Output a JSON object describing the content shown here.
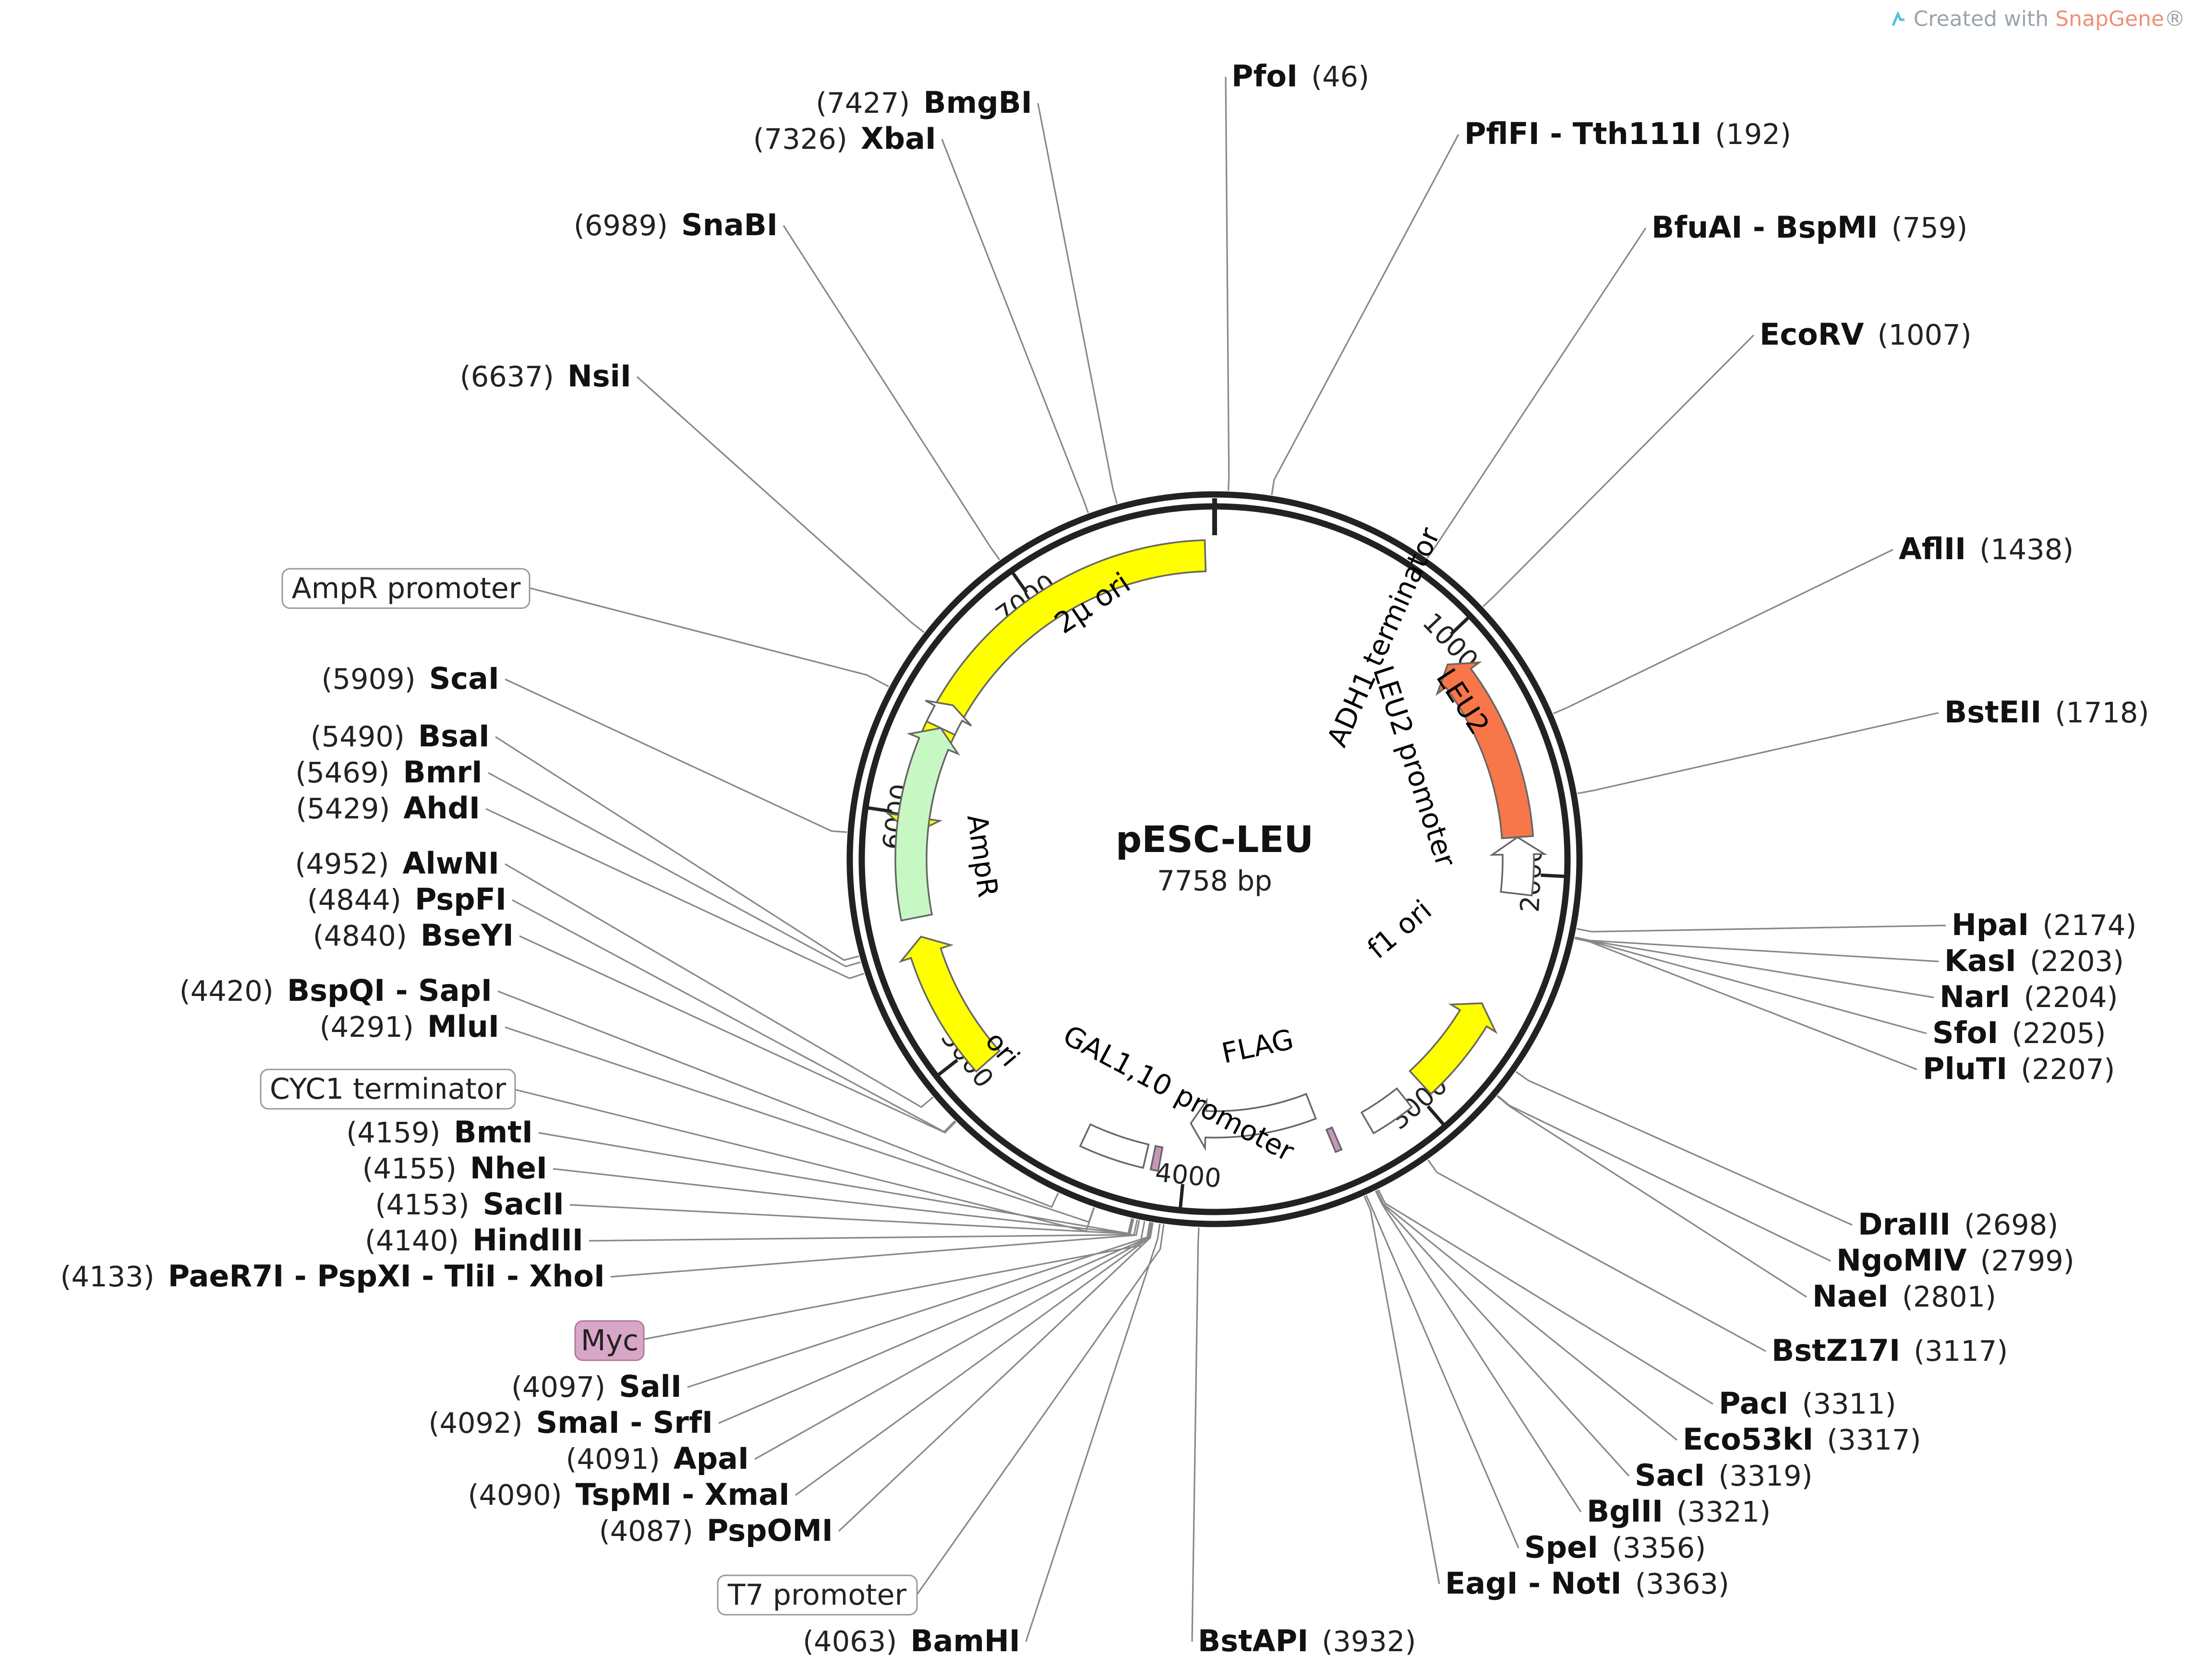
{
  "attribution": {
    "prefix": "Created with ",
    "brand": "SnapGene",
    "suffix": "®"
  },
  "plasmid": {
    "name": "pESC-LEU",
    "length_label": "7758 bp",
    "length": 7758
  },
  "ticks": [
    {
      "pos": 1000,
      "label": "1000"
    },
    {
      "pos": 2000,
      "label": "2000"
    },
    {
      "pos": 3000,
      "label": "3000"
    },
    {
      "pos": 4000,
      "label": "4000"
    },
    {
      "pos": 5000,
      "label": "5000"
    },
    {
      "pos": 6000,
      "label": "6000"
    },
    {
      "pos": 7000,
      "label": "7000"
    }
  ],
  "features": [
    {
      "id": "2u-ori",
      "label": "2µ ori",
      "start": 5920,
      "end": 7720,
      "dir": "ccw",
      "color": "#ffff00",
      "lane": "outer"
    },
    {
      "id": "leu2",
      "label": "LEU2",
      "start": 1080,
      "end": 1850,
      "dir": "ccw",
      "color": "#f7764a",
      "lane": "outer"
    },
    {
      "id": "leu2-promoter",
      "label": "LEU2 promoter",
      "start": 1850,
      "end": 2080,
      "dir": "ccw",
      "color": "#ffffff",
      "lane": "outer"
    },
    {
      "id": "f1-ori",
      "label": "f1 ori",
      "start": 2550,
      "end": 2960,
      "dir": "ccw",
      "color": "#ffff00",
      "lane": "outer"
    },
    {
      "id": "adh1-terminator",
      "label": "ADH1 terminator",
      "start": 3050,
      "end": 3230,
      "dir": "none",
      "color": "#ffffff",
      "lane": "outer"
    },
    {
      "id": "gal1-10-promoter",
      "label": "GAL1,10 promoter",
      "start": 3420,
      "end": 3990,
      "dir": "both",
      "color": "#ffffff",
      "lane": "inner"
    },
    {
      "id": "flag",
      "label": "FLAG",
      "start": 3370,
      "end": 3395,
      "dir": "none",
      "color": "#c995b8",
      "lane": "outer"
    },
    {
      "id": "myc",
      "label": "",
      "start": 4100,
      "end": 4130,
      "dir": "none",
      "color": "#c995b8",
      "lane": "outer"
    },
    {
      "id": "cyc1-terminator",
      "label": "",
      "start": 4160,
      "end": 4420,
      "dir": "none",
      "color": "#ffffff",
      "lane": "outer"
    },
    {
      "id": "ori",
      "label": "ori",
      "start": 4920,
      "end": 5500,
      "dir": "cw",
      "color": "#ffff00",
      "lane": "outer"
    },
    {
      "id": "ampr",
      "label": "AmpR",
      "start": 5580,
      "end": 6370,
      "dir": "cw",
      "color": "#c7f8c4",
      "lane": "outer"
    },
    {
      "id": "ampr-promoter",
      "label": "",
      "start": 6370,
      "end": 6475,
      "dir": "cw",
      "color": "#ffffff",
      "lane": "outer"
    }
  ],
  "outside_features": [
    {
      "label": "AmpR promoter",
      "style": "plain"
    },
    {
      "label": "CYC1 terminator",
      "style": "plain"
    },
    {
      "label": "Myc",
      "style": "pink"
    },
    {
      "label": "T7 promoter",
      "style": "plain"
    }
  ],
  "sites": [
    {
      "name": "PfoI",
      "pos": "(46)",
      "bp": 46
    },
    {
      "name": "PflFI - Tth111I",
      "pos": "(192)",
      "bp": 192
    },
    {
      "name": "BfuAI - BspMI",
      "pos": "(759)",
      "bp": 759
    },
    {
      "name": "EcoRV",
      "pos": "(1007)",
      "bp": 1007
    },
    {
      "name": "AflII",
      "pos": "(1438)",
      "bp": 1438
    },
    {
      "name": "BstEII",
      "pos": "(1718)",
      "bp": 1718
    },
    {
      "name": "HpaI",
      "pos": "(2174)",
      "bp": 2174
    },
    {
      "name": "KasI",
      "pos": "(2203)",
      "bp": 2203
    },
    {
      "name": "NarI",
      "pos": "(2204)",
      "bp": 2204
    },
    {
      "name": "SfoI",
      "pos": "(2205)",
      "bp": 2205
    },
    {
      "name": "PluTI",
      "pos": "(2207)",
      "bp": 2207
    },
    {
      "name": "DraIII",
      "pos": "(2698)",
      "bp": 2698
    },
    {
      "name": "NgoMIV",
      "pos": "(2799)",
      "bp": 2799
    },
    {
      "name": "NaeI",
      "pos": "(2801)",
      "bp": 2801
    },
    {
      "name": "BstZ17I",
      "pos": "(3117)",
      "bp": 3117
    },
    {
      "name": "PacI",
      "pos": "(3311)",
      "bp": 3311
    },
    {
      "name": "Eco53kI",
      "pos": "(3317)",
      "bp": 3317
    },
    {
      "name": "SacI",
      "pos": "(3319)",
      "bp": 3319
    },
    {
      "name": "BglII",
      "pos": "(3321)",
      "bp": 3321
    },
    {
      "name": "SpeI",
      "pos": "(3356)",
      "bp": 3356
    },
    {
      "name": "EagI - NotI",
      "pos": "(3363)",
      "bp": 3363
    },
    {
      "name": "BstAPI",
      "pos": "(3932)",
      "bp": 3932
    },
    {
      "name": "BamHI",
      "pos": "(4063)",
      "bp": 4063
    },
    {
      "name": "PspOMI",
      "pos": "(4087)",
      "bp": 4087
    },
    {
      "name": "TspMI - XmaI",
      "pos": "(4090)",
      "bp": 4090
    },
    {
      "name": "ApaI",
      "pos": "(4091)",
      "bp": 4091
    },
    {
      "name": "SmaI - SrfI",
      "pos": "(4092)",
      "bp": 4092
    },
    {
      "name": "SalI",
      "pos": "(4097)",
      "bp": 4097
    },
    {
      "name": "PaeR7I - PspXI - TliI - XhoI",
      "pos": "(4133)",
      "bp": 4133
    },
    {
      "name": "HindIII",
      "pos": "(4140)",
      "bp": 4140
    },
    {
      "name": "SacII",
      "pos": "(4153)",
      "bp": 4153
    },
    {
      "name": "NheI",
      "pos": "(4155)",
      "bp": 4155
    },
    {
      "name": "BmtI",
      "pos": "(4159)",
      "bp": 4159
    },
    {
      "name": "MluI",
      "pos": "(4291)",
      "bp": 4291
    },
    {
      "name": "BspQI - SapI",
      "pos": "(4420)",
      "bp": 4420
    },
    {
      "name": "BseYI",
      "pos": "(4840)",
      "bp": 4840
    },
    {
      "name": "PspFI",
      "pos": "(4844)",
      "bp": 4844
    },
    {
      "name": "AlwNI",
      "pos": "(4952)",
      "bp": 4952
    },
    {
      "name": "AhdI",
      "pos": "(5429)",
      "bp": 5429
    },
    {
      "name": "BmrI",
      "pos": "(5469)",
      "bp": 5469
    },
    {
      "name": "BsaI",
      "pos": "(5490)",
      "bp": 5490
    },
    {
      "name": "ScaI",
      "pos": "(5909)",
      "bp": 5909
    },
    {
      "name": "NsiI",
      "pos": "(6637)",
      "bp": 6637
    },
    {
      "name": "SnaBI",
      "pos": "(6989)",
      "bp": 6989
    },
    {
      "name": "XbaI",
      "pos": "(7326)",
      "bp": 7326
    },
    {
      "name": "BmgBI",
      "pos": "(7427)",
      "bp": 7427
    }
  ]
}
